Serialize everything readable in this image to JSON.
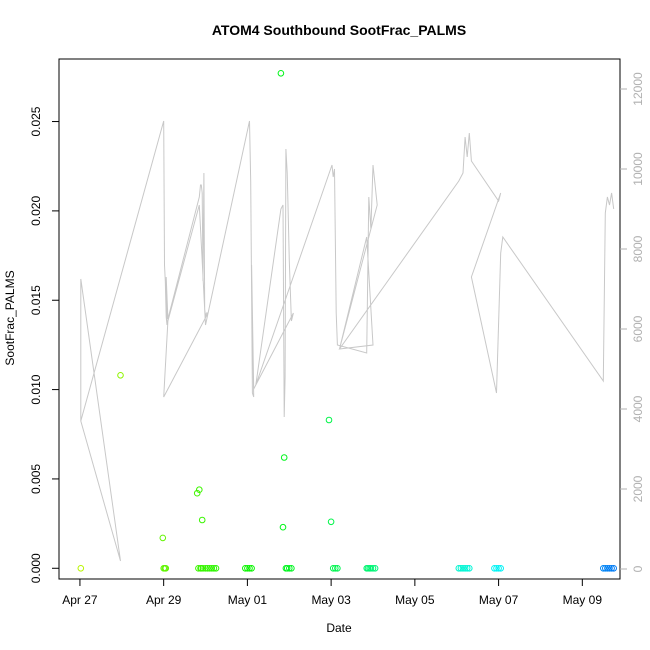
{
  "chart_data": {
    "type": "scatter",
    "title": "ATOM4 Southbound SootFrac_PALMS",
    "xlabel": "Date",
    "ylabel": "SootFrac_PALMS",
    "x_tick_labels": [
      "Apr 27",
      "Apr 29",
      "May 01",
      "May 03",
      "May 05",
      "May 07",
      "May 09"
    ],
    "x_tick_days": [
      0,
      2,
      4,
      6,
      8,
      10,
      12
    ],
    "xlim_days": [
      -0.5,
      12.9
    ],
    "ylim": [
      -0.0006,
      0.0285
    ],
    "y_ticks": [
      0.0,
      0.005,
      0.01,
      0.015,
      0.02,
      0.025
    ],
    "y_tick_labels": [
      "0.000",
      "0.005",
      "0.010",
      "0.015",
      "0.020",
      "0.025"
    ],
    "y2_ticks": [
      0,
      2000,
      4000,
      6000,
      8000,
      10000,
      12000
    ],
    "y2_tick_labels": [
      "0",
      "2000",
      "4000",
      "6000",
      "8000",
      "10000",
      "12000"
    ],
    "y2lim": [
      -250,
      12750
    ],
    "grid": false,
    "series": [
      {
        "kind": "points",
        "x": [
          0.02,
          0.97,
          1.98,
          2.0,
          2.03,
          2.05,
          2.8,
          2.83,
          2.85,
          2.88,
          2.9,
          2.92,
          2.94,
          3.0,
          3.05,
          3.1,
          3.15,
          3.2,
          3.25,
          3.95,
          4.0,
          4.05,
          4.1,
          4.8,
          4.85,
          4.88,
          4.92,
          4.95,
          5.0,
          5.05,
          5.95,
          6.0,
          6.05,
          6.1,
          6.15,
          6.85,
          6.88,
          6.92,
          6.95,
          7.0,
          7.05,
          9.05,
          9.1,
          9.15,
          9.2,
          9.25,
          9.3,
          9.9,
          9.95,
          10.0,
          10.05,
          12.5,
          12.55,
          12.6,
          12.65,
          12.7,
          12.75
        ],
        "y": [
          0.0,
          0.0108,
          0.0017,
          0.0,
          0.0,
          0.0,
          0.0042,
          0.0,
          0.0044,
          0.0,
          0.0,
          0.0027,
          0.0,
          0.0,
          0.0,
          0.0,
          0.0,
          0.0,
          0.0,
          0.0,
          0.0,
          0.0,
          0.0,
          0.0277,
          0.0023,
          0.0062,
          0.0,
          0.0,
          0.0,
          0.0,
          0.0083,
          0.0026,
          0.0,
          0.0,
          0.0,
          0.0,
          0.0,
          0.0,
          0.0,
          0.0,
          0.0,
          0.0,
          0.0,
          0.0,
          0.0,
          0.0,
          0.0,
          0.0,
          0.0,
          0.0,
          0.0,
          0.0,
          0.0,
          0.0,
          0.0,
          0.0,
          0.0
        ]
      },
      {
        "kind": "line",
        "axis": "right",
        "color": "#c8c8c8",
        "x": [
          0.02,
          0.02,
          0.97,
          0.02,
          2.0,
          2.02,
          2.04,
          2.06,
          2.08,
          2.06,
          2.1,
          2.85,
          2.88,
          2.9,
          2.92,
          2.94,
          2.96,
          2.98,
          3.0,
          3.02,
          3.06,
          2.0,
          2.1,
          2.85,
          3.0,
          4.05,
          4.08,
          4.12,
          4.15,
          4.1,
          4.15,
          4.2,
          4.8,
          4.85,
          4.88,
          4.9,
          4.92,
          4.95,
          4.97,
          5.0,
          5.05,
          5.1,
          4.2,
          6.02,
          6.05,
          6.08,
          6.12,
          6.15,
          6.85,
          6.9,
          6.95,
          7.0,
          7.1,
          6.2,
          6.85,
          7.0,
          6.2,
          9.05,
          9.1,
          9.15,
          9.2,
          9.25,
          9.3,
          9.35,
          10.0,
          10.05,
          9.35,
          9.95,
          10.05,
          10.1,
          12.5,
          12.55,
          12.6,
          12.65,
          12.7,
          12.75
        ],
        "y": [
          3700,
          7250,
          200,
          3700,
          11200,
          7600,
          7200,
          6300,
          6100,
          7300,
          6250,
          9300,
          9600,
          9600,
          9400,
          7200,
          9900,
          6500,
          6300,
          6400,
          6400,
          4300,
          6200,
          9100,
          6100,
          11200,
          9700,
          4400,
          4300,
          7600,
          4500,
          4600,
          9000,
          9100,
          3800,
          4800,
          10500,
          9900,
          9100,
          7700,
          6200,
          6400,
          4600,
          10100,
          9800,
          10000,
          6400,
          5600,
          5400,
          9300,
          8500,
          10100,
          9100,
          5500,
          8300,
          5600,
          5500,
          9700,
          9800,
          9900,
          10800,
          10300,
          10900,
          10200,
          9200,
          9400,
          7300,
          4400,
          7900,
          8300,
          4700,
          8900,
          9300,
          9100,
          9400,
          9000
        ]
      }
    ]
  }
}
